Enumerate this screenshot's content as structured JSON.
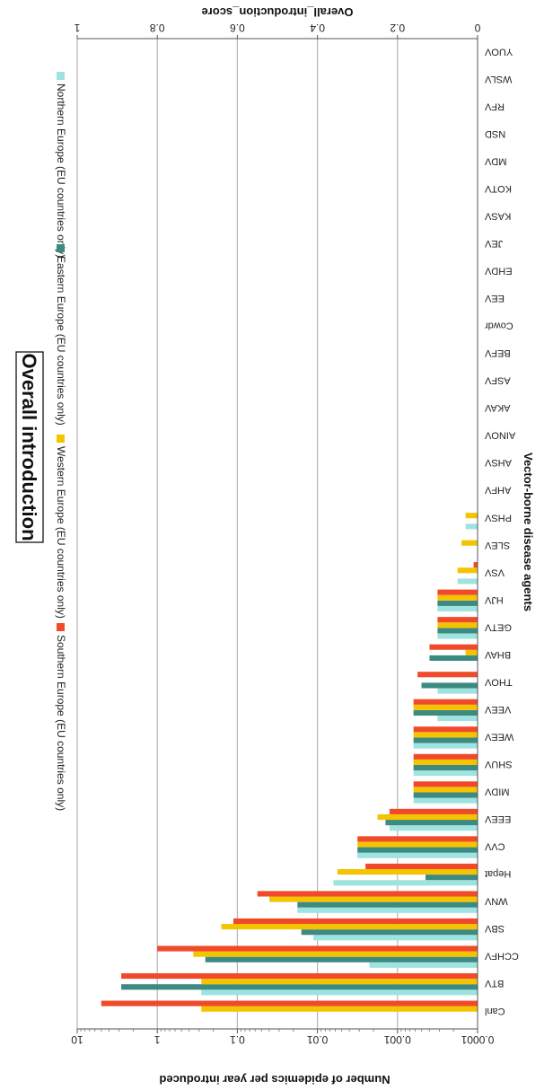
{
  "chart_data": {
    "type": "bar",
    "title": "Overall introduction",
    "xlabel": "Vector-borne disease agents",
    "ylabel": "Overall_introduction_score",
    "y2label": "Number of  epidemics per year introduced",
    "ylim": [
      0,
      1
    ],
    "yticks": [
      "0",
      "0.2",
      "0.4",
      "0.6",
      "0.8",
      "1"
    ],
    "y2ticks": [
      "0.0001",
      "0.001",
      "0.01",
      "0.1",
      "1",
      "10"
    ],
    "grid": true,
    "legend_position": "top",
    "categories": [
      "Canl",
      "BTV",
      "CCHFV",
      "SBV",
      "WNV",
      "Hepat",
      "CVV",
      "EEEV",
      "MIDV",
      "SHUV",
      "WEEV",
      "VEEV",
      "THOV",
      "BHAV",
      "GETV",
      "HJV",
      "VSV",
      "SLEV",
      "PHSV",
      "AHFV",
      "AHSV",
      "AINOV",
      "AKAV",
      "ASFV",
      "BEFV",
      "Cowdr",
      "EEV",
      "EHDV",
      "JEV",
      "KASV",
      "KOTV",
      "MDV",
      "NSD",
      "RFV",
      "WSLV",
      "YUOV"
    ],
    "series": [
      {
        "name": "Northern Europe (EU countries only)",
        "color": "#9fe3e0",
        "values": [
          0,
          0.69,
          0.27,
          0.41,
          0.45,
          0.36,
          0.3,
          0.22,
          0.16,
          0.16,
          0.16,
          0.1,
          0.1,
          0.0,
          0.1,
          0.1,
          0.05,
          0.0,
          0.03,
          0,
          0,
          0,
          0,
          0,
          0,
          0,
          0,
          0,
          0,
          0,
          0,
          0,
          0,
          0,
          0,
          0
        ]
      },
      {
        "name": "Eastern Europe (EU countries only)",
        "color": "#3d8a82",
        "values": [
          0,
          0.89,
          0.68,
          0.44,
          0.45,
          0.13,
          0.3,
          0.23,
          0.16,
          0.16,
          0.16,
          0.16,
          0.14,
          0.12,
          0.1,
          0.1,
          0.0,
          0.0,
          0.0,
          0,
          0,
          0,
          0,
          0,
          0,
          0,
          0,
          0,
          0,
          0,
          0,
          0,
          0,
          0,
          0,
          0
        ]
      },
      {
        "name": "Western Europe (EU countries only)",
        "color": "#f5c400",
        "values": [
          0.69,
          0.69,
          0.71,
          0.64,
          0.52,
          0.35,
          0.3,
          0.25,
          0.16,
          0.16,
          0.16,
          0.16,
          0.0,
          0.03,
          0.1,
          0.1,
          0.05,
          0.04,
          0.03,
          0,
          0,
          0,
          0,
          0,
          0,
          0,
          0,
          0,
          0,
          0,
          0,
          0,
          0,
          0,
          0,
          0
        ]
      },
      {
        "name": "Southern Europe (EU countries only)",
        "color": "#f04a2a",
        "values": [
          0.94,
          0.89,
          0.8,
          0.61,
          0.55,
          0.28,
          0.3,
          0.22,
          0.16,
          0.16,
          0.16,
          0.16,
          0.15,
          0.12,
          0.1,
          0.1,
          0.01,
          0.0,
          0.0,
          0,
          0,
          0,
          0,
          0,
          0,
          0,
          0,
          0,
          0,
          0,
          0,
          0,
          0,
          0,
          0,
          0
        ]
      }
    ]
  }
}
